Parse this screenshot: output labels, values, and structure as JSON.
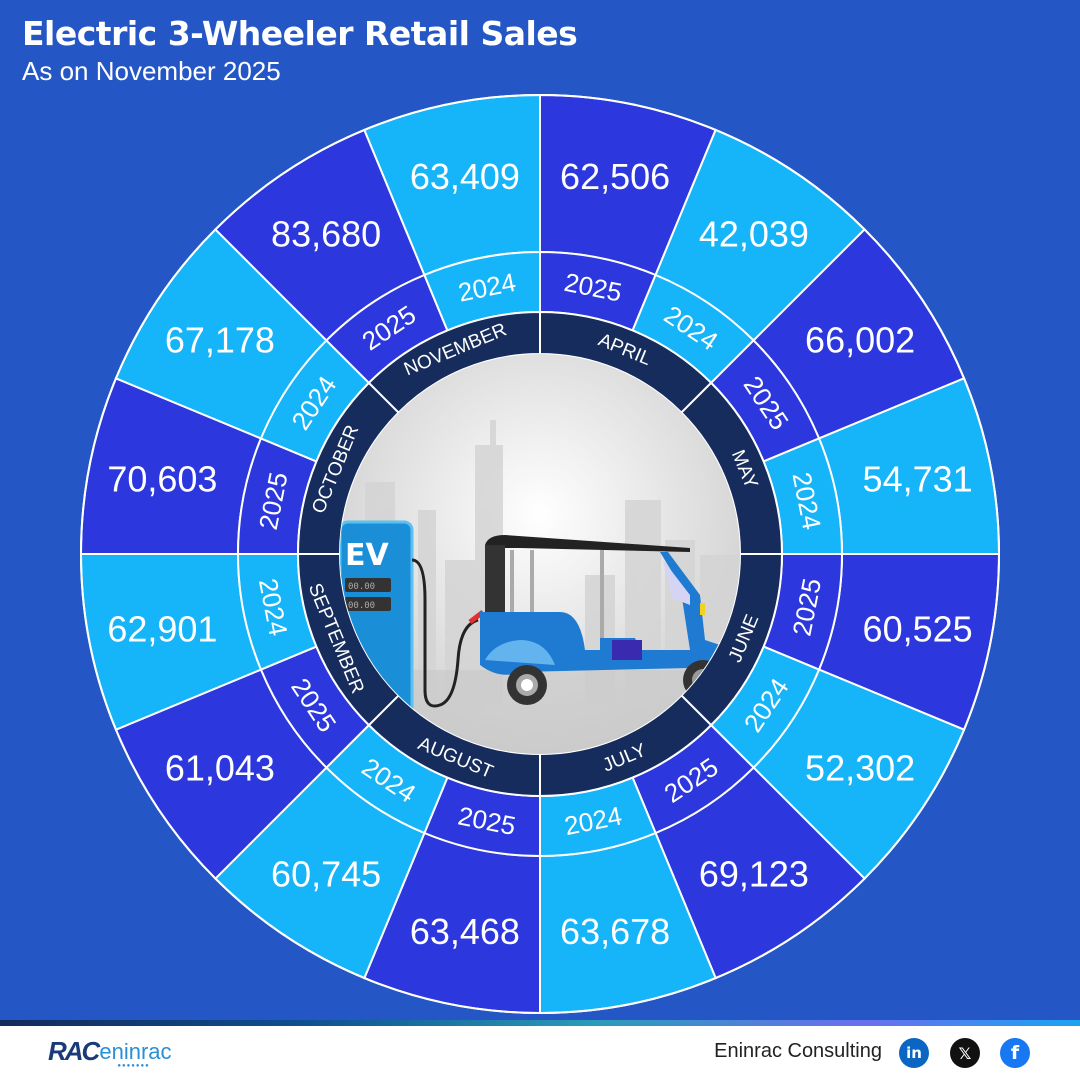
{
  "header": {
    "title": "Electric 3-Wheeler Retail Sales",
    "subtitle": "As on November 2025"
  },
  "colors": {
    "background": "#2457c5",
    "year_2025": "#2c38de",
    "year_2024": "#16b4f8",
    "month_ring": "#162c5c",
    "divider": "#ffffff"
  },
  "center_illustration": {
    "pump_label": "EV",
    "display_1": "00.00",
    "display_2": "00.00"
  },
  "chart_data": {
    "type": "radial-segment (polar table)",
    "title": "Electric 3-Wheeler Retail Sales",
    "subtitle": "As on November 2025",
    "categories": [
      "April",
      "May",
      "June",
      "July",
      "August",
      "September",
      "October",
      "November"
    ],
    "series": [
      {
        "name": "2025",
        "values": [
          62506,
          66002,
          60525,
          69123,
          63468,
          61043,
          70603,
          83680
        ]
      },
      {
        "name": "2024",
        "values": [
          42039,
          54731,
          52302,
          63678,
          60745,
          62901,
          67178,
          63409
        ]
      }
    ]
  },
  "segments": [
    {
      "month": "APRIL",
      "y2025": "62,506",
      "y2024": "42,039",
      "label2025": "2025",
      "label2024": "2024"
    },
    {
      "month": "MAY",
      "y2025": "66,002",
      "y2024": "54,731",
      "label2025": "2025",
      "label2024": "2024"
    },
    {
      "month": "JUNE",
      "y2025": "60,525",
      "y2024": "52,302",
      "label2025": "2025",
      "label2024": "2024"
    },
    {
      "month": "JULY",
      "y2025": "69,123",
      "y2024": "63,678",
      "label2025": "2025",
      "label2024": "2024"
    },
    {
      "month": "AUGUST",
      "y2025": "63,468",
      "y2024": "60,745",
      "label2025": "2025",
      "label2024": "2024"
    },
    {
      "month": "SEPTEMBER",
      "y2025": "61,043",
      "y2024": "62,901",
      "label2025": "2025",
      "label2024": "2024"
    },
    {
      "month": "OCTOBER",
      "y2025": "70,603",
      "y2024": "67,178",
      "label2025": "2025",
      "label2024": "2024"
    },
    {
      "month": "NOVEMBER",
      "y2025": "83,680",
      "y2024": "63,409",
      "label2025": "2025",
      "label2024": "2024"
    }
  ],
  "footer": {
    "logo_mark": "RAC",
    "logo_text": "eninrac",
    "company": "Eninrac Consulting",
    "social": {
      "linkedin": "in",
      "x": "𝕏",
      "facebook": "f"
    }
  }
}
